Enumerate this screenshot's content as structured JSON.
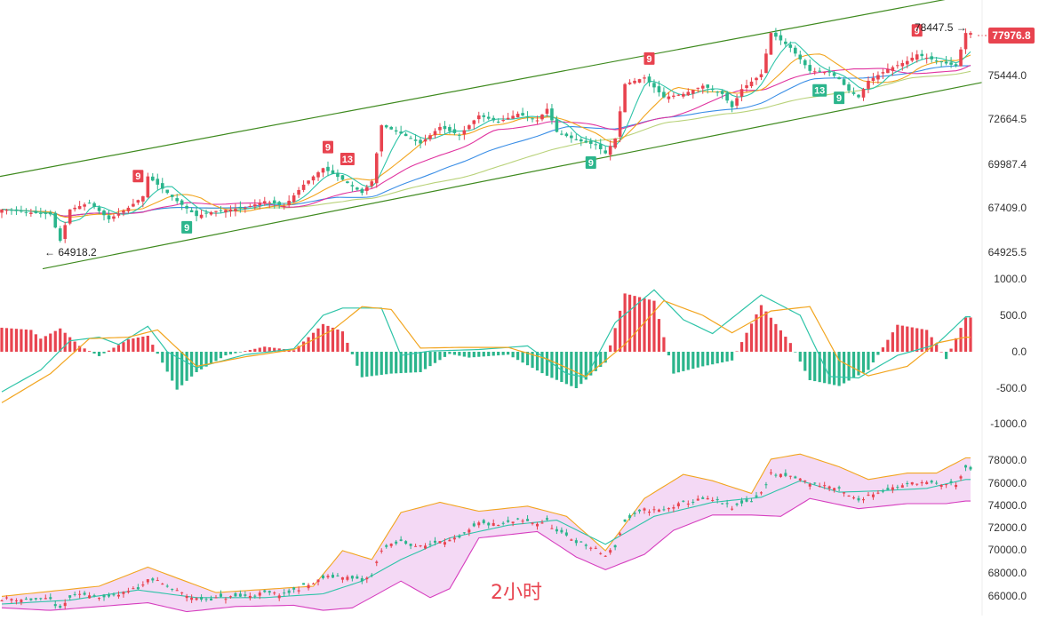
{
  "current_price": "77976.8",
  "high_label": "78447.5",
  "low_label": "64918.2",
  "timeframe": "2小时",
  "colors": {
    "up": "#e8434f",
    "down": "#2bb58c",
    "ma1": "#2ec4a8",
    "ma2": "#f2a51f",
    "ma3": "#e0339f",
    "ma4": "#3a8ee6",
    "ma5": "#b9d27a",
    "channel": "#3f8a1f",
    "boll_fill": "#f4d9f5",
    "boll_upper": "#f2a51f",
    "boll_lower": "#d63fbf",
    "boll_mid": "#2ec4a8"
  },
  "chart_data": [
    {
      "type": "candlestick",
      "panel": "price",
      "yticks": [
        "75444.0",
        "72664.5",
        "69987.4",
        "67409.0",
        "64925.5"
      ],
      "ylim": [
        63200,
        79900
      ],
      "annotations": [
        "9",
        "13",
        "9",
        "9",
        "9",
        "9",
        "13",
        "9"
      ],
      "close_path": [
        [
          0,
          67200
        ],
        [
          6,
          67000
        ],
        [
          10,
          66900
        ],
        [
          12,
          65300
        ],
        [
          14,
          67200
        ],
        [
          18,
          67600
        ],
        [
          22,
          66600
        ],
        [
          26,
          67300
        ],
        [
          29,
          68000
        ],
        [
          30,
          69200
        ],
        [
          32,
          68700
        ],
        [
          36,
          67700
        ],
        [
          40,
          66800
        ],
        [
          44,
          67100
        ],
        [
          50,
          67300
        ],
        [
          54,
          67700
        ],
        [
          58,
          67400
        ],
        [
          62,
          68700
        ],
        [
          66,
          69700
        ],
        [
          70,
          69000
        ],
        [
          74,
          68200
        ],
        [
          76,
          68900
        ],
        [
          78,
          72300
        ],
        [
          82,
          71800
        ],
        [
          86,
          71200
        ],
        [
          90,
          72200
        ],
        [
          94,
          71700
        ],
        [
          98,
          72900
        ],
        [
          102,
          72500
        ],
        [
          106,
          73000
        ],
        [
          110,
          72600
        ],
        [
          112,
          73300
        ],
        [
          114,
          71900
        ],
        [
          118,
          71400
        ],
        [
          122,
          71100
        ],
        [
          124,
          70600
        ],
        [
          126,
          71500
        ],
        [
          128,
          74800
        ],
        [
          132,
          75200
        ],
        [
          136,
          74000
        ],
        [
          140,
          74200
        ],
        [
          144,
          74700
        ],
        [
          148,
          74200
        ],
        [
          150,
          73400
        ],
        [
          152,
          74500
        ],
        [
          156,
          75400
        ],
        [
          158,
          77900
        ],
        [
          162,
          77000
        ],
        [
          166,
          75600
        ],
        [
          170,
          75500
        ],
        [
          172,
          75100
        ],
        [
          174,
          74400
        ],
        [
          176,
          74000
        ],
        [
          178,
          75000
        ],
        [
          182,
          75700
        ],
        [
          186,
          76200
        ],
        [
          188,
          76600
        ],
        [
          192,
          76200
        ],
        [
          196,
          75900
        ],
        [
          198,
          77900
        ]
      ]
    },
    {
      "type": "bar",
      "panel": "macd",
      "yticks": [
        "1000.0",
        "500.0",
        "0.0",
        "-500.0",
        "-1000.0"
      ],
      "ylim": [
        -1000,
        1000
      ],
      "histogram_path": [
        [
          0,
          330
        ],
        [
          6,
          300
        ],
        [
          8,
          180
        ],
        [
          12,
          320
        ],
        [
          16,
          80
        ],
        [
          20,
          -60
        ],
        [
          26,
          170
        ],
        [
          30,
          220
        ],
        [
          36,
          -520
        ],
        [
          40,
          -280
        ],
        [
          46,
          -50
        ],
        [
          54,
          70
        ],
        [
          60,
          20
        ],
        [
          66,
          380
        ],
        [
          70,
          280
        ],
        [
          74,
          -350
        ],
        [
          80,
          -300
        ],
        [
          86,
          -280
        ],
        [
          92,
          -30
        ],
        [
          96,
          -80
        ],
        [
          104,
          -40
        ],
        [
          112,
          -330
        ],
        [
          118,
          -500
        ],
        [
          124,
          -150
        ],
        [
          128,
          800
        ],
        [
          134,
          700
        ],
        [
          138,
          -300
        ],
        [
          144,
          -200
        ],
        [
          150,
          -120
        ],
        [
          156,
          640
        ],
        [
          162,
          120
        ],
        [
          166,
          -390
        ],
        [
          172,
          -470
        ],
        [
          178,
          -250
        ],
        [
          184,
          370
        ],
        [
          190,
          300
        ],
        [
          194,
          -100
        ],
        [
          198,
          470
        ]
      ],
      "dif_path": [
        [
          0,
          -550
        ],
        [
          8,
          -250
        ],
        [
          14,
          150
        ],
        [
          20,
          200
        ],
        [
          24,
          100
        ],
        [
          30,
          350
        ],
        [
          34,
          0
        ],
        [
          40,
          -220
        ],
        [
          50,
          -40
        ],
        [
          60,
          40
        ],
        [
          66,
          500
        ],
        [
          70,
          600
        ],
        [
          78,
          600
        ],
        [
          82,
          -50
        ],
        [
          88,
          10
        ],
        [
          98,
          30
        ],
        [
          108,
          80
        ],
        [
          116,
          -300
        ],
        [
          120,
          -350
        ],
        [
          126,
          400
        ],
        [
          134,
          850
        ],
        [
          140,
          440
        ],
        [
          146,
          250
        ],
        [
          156,
          780
        ],
        [
          164,
          500
        ],
        [
          170,
          -340
        ],
        [
          176,
          -360
        ],
        [
          184,
          -50
        ],
        [
          192,
          100
        ],
        [
          198,
          480
        ]
      ],
      "dea_path": [
        [
          0,
          -700
        ],
        [
          10,
          -300
        ],
        [
          18,
          180
        ],
        [
          26,
          200
        ],
        [
          32,
          300
        ],
        [
          40,
          -200
        ],
        [
          50,
          -70
        ],
        [
          60,
          30
        ],
        [
          68,
          300
        ],
        [
          74,
          620
        ],
        [
          80,
          580
        ],
        [
          86,
          50
        ],
        [
          94,
          60
        ],
        [
          104,
          60
        ],
        [
          112,
          -100
        ],
        [
          120,
          -340
        ],
        [
          128,
          100
        ],
        [
          136,
          700
        ],
        [
          144,
          500
        ],
        [
          150,
          260
        ],
        [
          158,
          560
        ],
        [
          166,
          620
        ],
        [
          172,
          -120
        ],
        [
          178,
          -330
        ],
        [
          186,
          -200
        ],
        [
          192,
          120
        ],
        [
          198,
          200
        ]
      ]
    },
    {
      "type": "candlestick",
      "panel": "boll",
      "yticks": [
        "78000.0",
        "76000.0",
        "74000.0",
        "72000.0",
        "70000.0",
        "68000.0",
        "66000.0"
      ],
      "ylim": [
        65800,
        79500
      ],
      "upper_path": [
        [
          0,
          67100
        ],
        [
          20,
          67900
        ],
        [
          30,
          69400
        ],
        [
          44,
          67400
        ],
        [
          56,
          67700
        ],
        [
          64,
          67900
        ],
        [
          70,
          70700
        ],
        [
          76,
          70000
        ],
        [
          82,
          73700
        ],
        [
          90,
          74500
        ],
        [
          98,
          73800
        ],
        [
          108,
          74200
        ],
        [
          116,
          73400
        ],
        [
          124,
          70700
        ],
        [
          132,
          74800
        ],
        [
          140,
          76700
        ],
        [
          146,
          76200
        ],
        [
          154,
          75200
        ],
        [
          158,
          77900
        ],
        [
          164,
          78300
        ],
        [
          172,
          77300
        ],
        [
          178,
          76300
        ],
        [
          186,
          76800
        ],
        [
          192,
          76800
        ],
        [
          198,
          78000
        ]
      ],
      "lower_path": [
        [
          0,
          66200
        ],
        [
          10,
          66000
        ],
        [
          20,
          66300
        ],
        [
          30,
          66600
        ],
        [
          38,
          65900
        ],
        [
          48,
          66300
        ],
        [
          60,
          66400
        ],
        [
          66,
          66000
        ],
        [
          72,
          66200
        ],
        [
          82,
          68300
        ],
        [
          88,
          67000
        ],
        [
          92,
          67700
        ],
        [
          98,
          71700
        ],
        [
          110,
          72200
        ],
        [
          118,
          70200
        ],
        [
          124,
          69200
        ],
        [
          132,
          70400
        ],
        [
          138,
          72300
        ],
        [
          146,
          73500
        ],
        [
          154,
          73500
        ],
        [
          160,
          73400
        ],
        [
          166,
          74800
        ],
        [
          176,
          74000
        ],
        [
          186,
          74400
        ],
        [
          194,
          74400
        ],
        [
          198,
          74600
        ]
      ],
      "mid_path": [
        [
          0,
          66500
        ],
        [
          14,
          66800
        ],
        [
          28,
          67600
        ],
        [
          40,
          67000
        ],
        [
          54,
          67000
        ],
        [
          66,
          67300
        ],
        [
          74,
          68300
        ],
        [
          82,
          70000
        ],
        [
          92,
          71700
        ],
        [
          104,
          72700
        ],
        [
          114,
          73100
        ],
        [
          124,
          71200
        ],
        [
          134,
          73400
        ],
        [
          146,
          74500
        ],
        [
          156,
          74900
        ],
        [
          164,
          76200
        ],
        [
          172,
          75300
        ],
        [
          180,
          75400
        ],
        [
          190,
          75600
        ],
        [
          198,
          76300
        ]
      ]
    }
  ]
}
